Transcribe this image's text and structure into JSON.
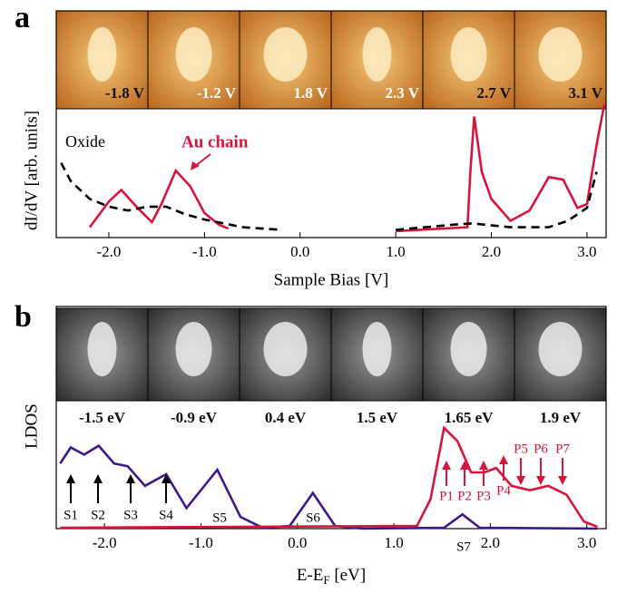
{
  "chart_data": [
    {
      "type": "line",
      "panel_label": "a",
      "y_label": "dI/dV [arb. units]",
      "x_label": "Sample Bias [V]",
      "image_labels": [
        "-1.8 V",
        "-1.2 V",
        "1.8 V",
        "2.3 V",
        "2.7 V",
        "3.1 V"
      ],
      "xlim": [
        -2.55,
        3.2
      ],
      "ylim": [
        0,
        1
      ],
      "xticks": [
        {
          "value": -2,
          "label": "-2.0"
        },
        {
          "value": -1,
          "label": "-1.0"
        },
        {
          "value": 0,
          "label": "0.0"
        },
        {
          "value": 1,
          "label": "1.0"
        },
        {
          "value": 2,
          "label": "2.0"
        },
        {
          "value": 3,
          "label": "3.0"
        }
      ],
      "series": [
        {
          "name": "Au chain",
          "color": "#d7163c",
          "dashed": false,
          "x": [
            -2.2,
            -2.0,
            -1.87,
            -1.7,
            -1.55,
            -1.45,
            -1.3,
            -1.15,
            -1.0,
            -0.85,
            -0.75,
            null,
            1.0,
            1.75,
            1.78,
            1.82,
            1.9,
            2.0,
            2.2,
            2.4,
            2.6,
            2.75,
            2.9,
            3.0,
            3.1,
            3.18
          ],
          "values": [
            0.08,
            0.28,
            0.37,
            0.23,
            0.12,
            0.26,
            0.52,
            0.4,
            0.19,
            0.1,
            0.07,
            null,
            0.05,
            0.08,
            0.5,
            0.94,
            0.51,
            0.3,
            0.13,
            0.21,
            0.47,
            0.45,
            0.23,
            0.26,
            0.72,
            1.03
          ]
        },
        {
          "name": "Oxide",
          "color": "#000000",
          "dashed": true,
          "x": [
            -2.5,
            -2.4,
            -2.2,
            -2.0,
            -1.8,
            -1.6,
            -1.4,
            -1.2,
            -1.0,
            -0.6,
            -0.2,
            null,
            1.0,
            1.6,
            1.8,
            2.2,
            2.6,
            2.8,
            3.0,
            3.1
          ],
          "values": [
            0.58,
            0.44,
            0.3,
            0.24,
            0.21,
            0.24,
            0.24,
            0.18,
            0.14,
            0.08,
            0.06,
            null,
            0.06,
            0.1,
            0.11,
            0.08,
            0.08,
            0.13,
            0.23,
            0.51
          ]
        }
      ]
    },
    {
      "type": "line",
      "panel_label": "b",
      "y_label": "LDOS",
      "x_label_parts": [
        "E-E",
        "F",
        " [eV]"
      ],
      "image_labels": [
        "-1.5 eV",
        "-0.9 eV",
        "0.4 eV",
        "1.5 eV",
        "1.65 eV",
        "1.9 eV"
      ],
      "xlim": [
        -2.5,
        3.2
      ],
      "ylim": [
        0,
        1.2
      ],
      "xticks": [
        {
          "value": -2,
          "label": "-2.0"
        },
        {
          "value": -1,
          "label": "-1.0"
        },
        {
          "value": 0,
          "label": "0.0"
        },
        {
          "value": 1,
          "label": "1.0"
        },
        {
          "value": 2,
          "label": "2.0"
        },
        {
          "value": 3,
          "label": "3.0"
        }
      ],
      "s_labels": [
        "S1",
        "S2",
        "S3",
        "S4",
        "S5",
        "S6",
        "S7"
      ],
      "p_labels": [
        "P1",
        "P2",
        "P3",
        "P4",
        "P5",
        "P6",
        "P7"
      ],
      "series": [
        {
          "color": "#3d1a8c",
          "dashed": false,
          "x": [
            -2.46,
            -2.35,
            -2.21,
            -2.06,
            -1.9,
            -1.76,
            -1.58,
            -1.36,
            -1.15,
            -0.83,
            -0.59,
            -0.36,
            -0.08,
            0.16,
            0.39,
            0.68,
            1.52,
            1.71,
            1.89,
            3.11
          ],
          "values": [
            0.73,
            0.91,
            0.83,
            0.93,
            0.73,
            0.7,
            0.48,
            0.61,
            0.23,
            0.66,
            0.13,
            0.01,
            0.03,
            0.4,
            0.03,
            0,
            0.01,
            0.16,
            0.01,
            0
          ]
        },
        {
          "color": "#d7163c",
          "dashed": false,
          "x": [
            -2.46,
            1.24,
            1.38,
            1.52,
            1.66,
            1.8,
            1.94,
            2.06,
            2.22,
            2.41,
            2.6,
            2.79,
            2.97,
            3.11
          ],
          "values": [
            0.01,
            0.03,
            0.33,
            1.13,
            0.98,
            0.63,
            0.63,
            0.68,
            0.48,
            0.43,
            0.48,
            0.38,
            0.08,
            0.02
          ]
        }
      ]
    }
  ]
}
